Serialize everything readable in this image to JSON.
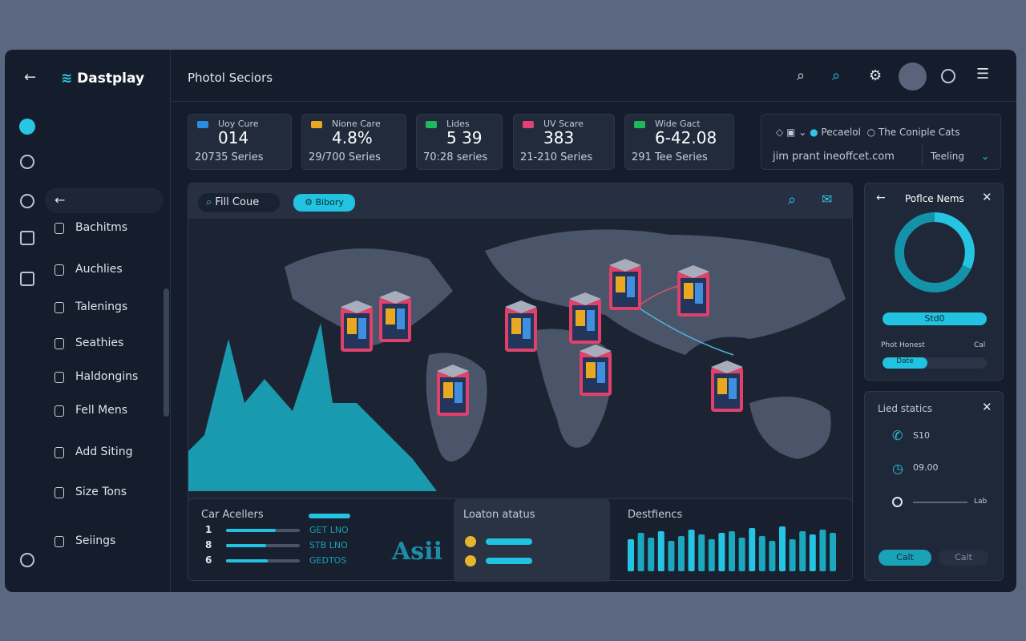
{
  "sidebar": {
    "logo": "Dastplay",
    "nav": [
      "Bachitms",
      "Auchlies",
      "Talenings",
      "Seathies",
      "Haldongins",
      "Fell Mens",
      "Add Siting",
      "Size Tons",
      "Seiings"
    ]
  },
  "header": {
    "title": "Photol Seciors"
  },
  "stats": [
    {
      "label": "Uoy Cure",
      "value": "014",
      "sub": "20735 Series"
    },
    {
      "label": "Nione Care",
      "value": "4.8%",
      "sub": "29/700 Series"
    },
    {
      "label": "Lides",
      "value": "5 39",
      "sub": "70:28 series"
    },
    {
      "label": "UV Scare",
      "value": "383",
      "sub": "21-210 Series"
    },
    {
      "label": "Wide Gact",
      "value": "6-42.08",
      "sub": "291 Tee Series"
    }
  ],
  "info": {
    "item1": "Pecaelol",
    "item2": "The Coniple Cats",
    "url": "jim prant ineoffcet.com",
    "select": "Teeling"
  },
  "map": {
    "search": "Fill Coue",
    "chip": "Bibory"
  },
  "bottom": {
    "list_title": "Car Acellers",
    "rows": [
      {
        "n": "1",
        "code": "GET LNO"
      },
      {
        "n": "8",
        "code": "STB LNO"
      },
      {
        "n": "6",
        "code": "GEDTOS"
      }
    ],
    "brand": "Asii",
    "status_title": "Loaton atatus",
    "dest_title": "Destfiencs"
  },
  "panel1": {
    "title": "Poflce Nems",
    "button": "Std0",
    "label": "Phot Honest",
    "label2": "Cal",
    "chip": "Date"
  },
  "panel2": {
    "title": "Lied statics",
    "rows": [
      "S10",
      "09.00",
      "Lab"
    ],
    "buttons": [
      "Calt",
      "Calt"
    ]
  }
}
